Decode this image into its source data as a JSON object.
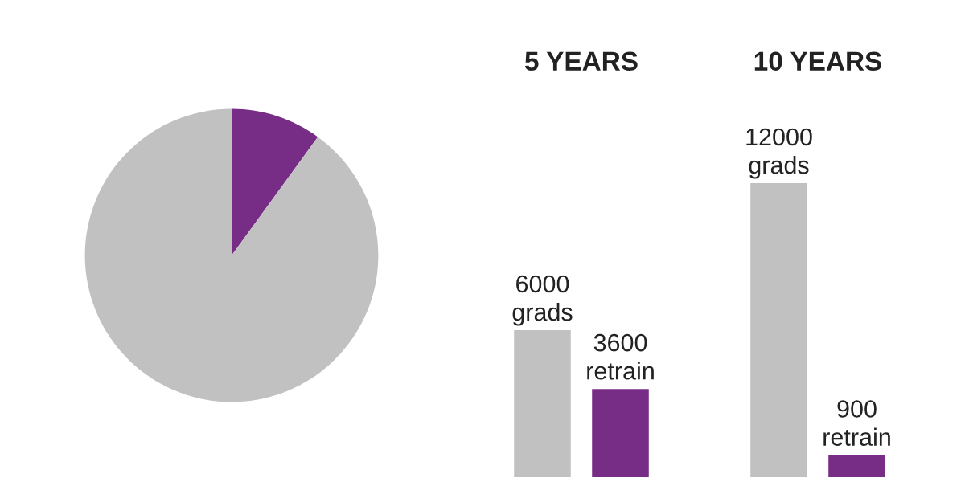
{
  "chart_data": [
    {
      "type": "pie",
      "categories": [
        null,
        null
      ],
      "values": [
        10,
        90
      ],
      "colors": [
        "#772d85",
        "#c1c1c1"
      ]
    },
    {
      "type": "bar",
      "categories": [
        "5 YEARS",
        "10 YEARS"
      ],
      "series": [
        {
          "color": "#c1c1c1",
          "values": [
            6000,
            12000
          ],
          "value_labels": [
            "6000\ngrads",
            "12000\ngrads"
          ]
        },
        {
          "color": "#772d85",
          "values": [
            3600,
            900
          ],
          "value_labels": [
            "3600\nretrain",
            "900\nretrain"
          ]
        }
      ]
    }
  ]
}
